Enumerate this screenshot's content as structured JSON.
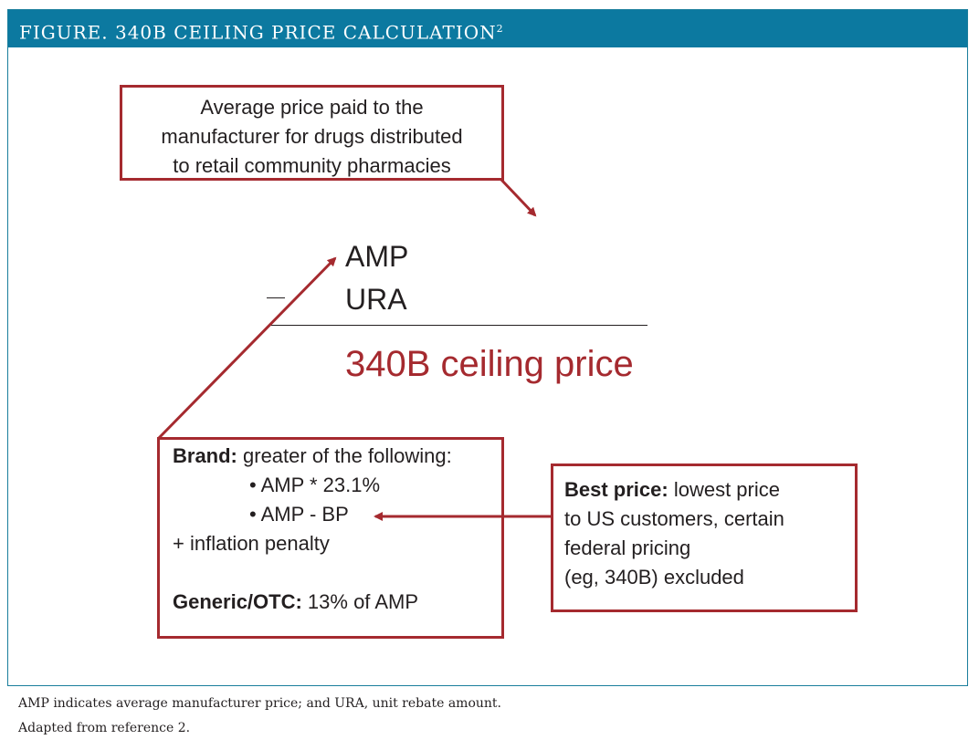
{
  "figure": {
    "title": "FIGURE. 340B CEILING PRICE CALCULATION",
    "title_superscript": "2"
  },
  "top_box": {
    "lines": [
      "Average price paid to the",
      "manufacturer for drugs distributed",
      "to retail community pharmacies"
    ]
  },
  "formula": {
    "term1": "AMP",
    "operator": "—",
    "term2": "URA",
    "result": "340B ceiling price"
  },
  "brand_box": {
    "brand_label": "Brand:",
    "brand_text": " greater of the following:",
    "bullets": [
      "• AMP * 23.1%",
      "• AMP - BP"
    ],
    "inflation": "+ inflation penalty",
    "generic_label": "Generic/OTC:",
    "generic_text": " 13% of AMP"
  },
  "best_price_box": {
    "label": "Best price:",
    "line1_text": " lowest price",
    "lines": [
      "to US customers, certain",
      "federal pricing",
      "(eg, 340B) excluded"
    ]
  },
  "footnotes": [
    "AMP indicates average manufacturer price; and URA, unit rebate amount.",
    "Adapted from reference 2."
  ],
  "colors": {
    "title_bar": "#0c79a0",
    "accent_red": "#a52a2f",
    "text": "#231f20"
  }
}
